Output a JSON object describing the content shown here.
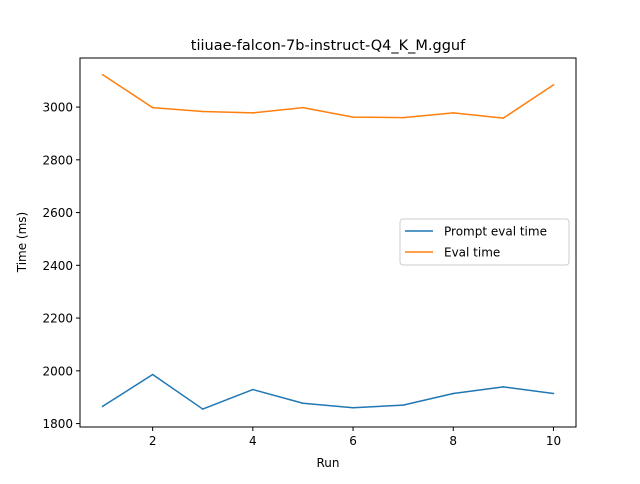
{
  "chart_data": {
    "type": "line",
    "title": "tiiuae-falcon-7b-instruct-Q4_K_M.gguf",
    "xlabel": "Run",
    "ylabel": "Time (ms)",
    "x": [
      1,
      2,
      3,
      4,
      5,
      6,
      7,
      8,
      9,
      10
    ],
    "xlim": [
      0.55,
      10.45
    ],
    "ylim": [
      1787,
      3186
    ],
    "xticks": [
      2,
      4,
      6,
      8,
      10
    ],
    "yticks": [
      1800,
      2000,
      2200,
      2400,
      2600,
      2800,
      3000
    ],
    "grid": false,
    "legend_position": "center-right",
    "series": [
      {
        "name": "Prompt eval time",
        "color": "#1f77b4",
        "values": [
          1865,
          1986,
          1855,
          1929,
          1877,
          1860,
          1870,
          1914,
          1939,
          1914
        ]
      },
      {
        "name": "Eval time",
        "color": "#ff7f0e",
        "values": [
          3123,
          2998,
          2983,
          2978,
          2998,
          2962,
          2960,
          2978,
          2958,
          3084
        ]
      }
    ]
  }
}
